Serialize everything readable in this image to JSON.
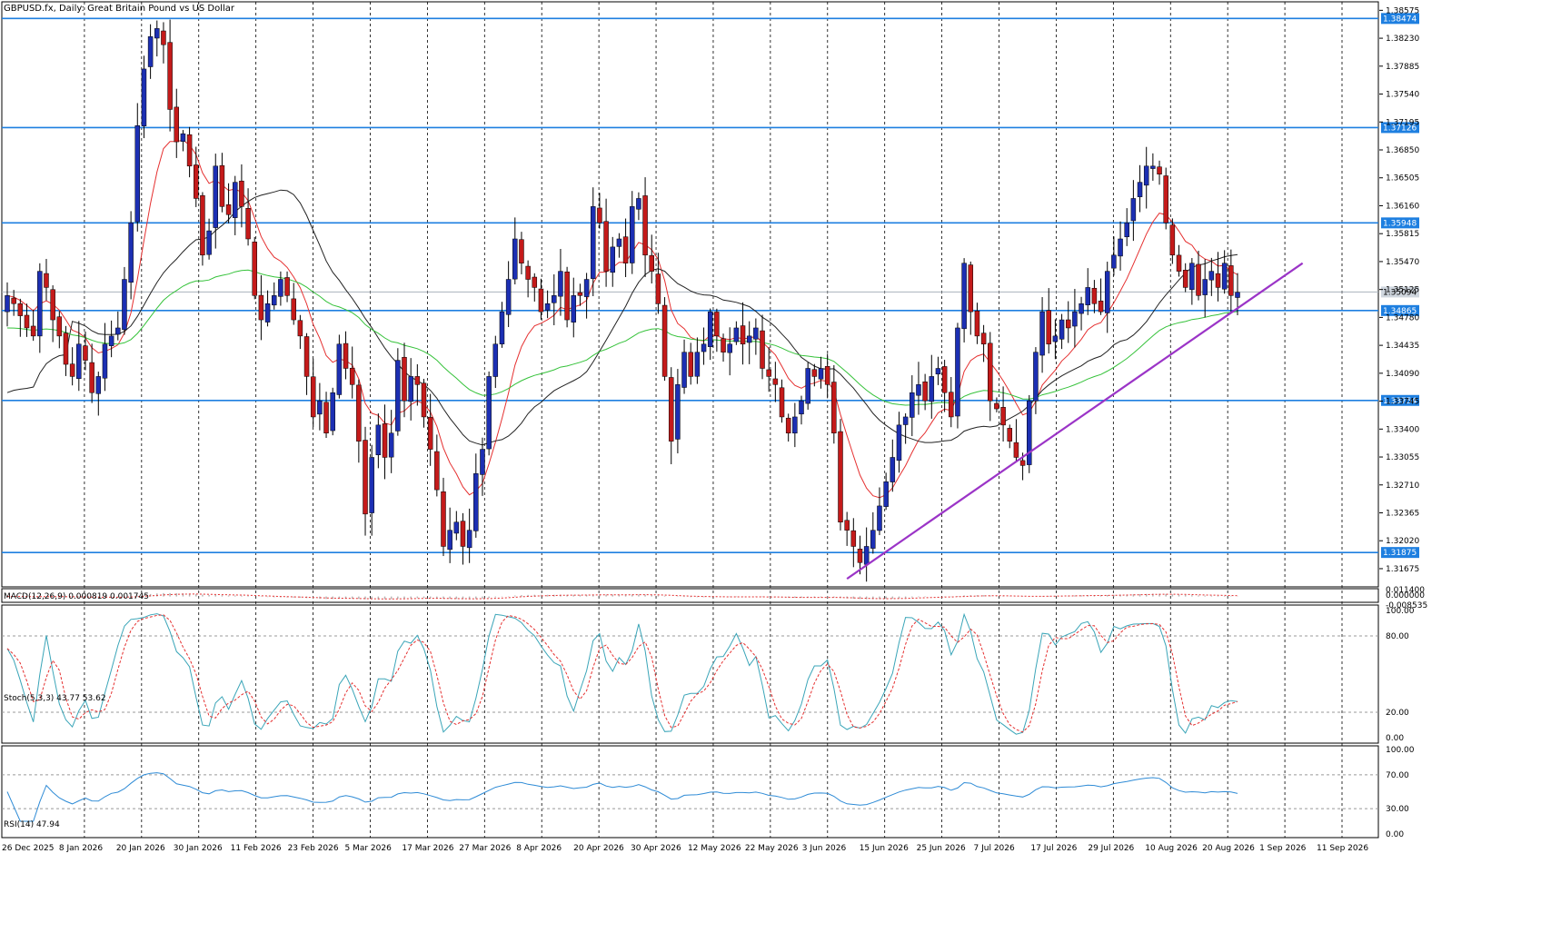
{
  "chart_title": "GBPUSD.fx, Daily:  Great Britain Pound vs US Dollar",
  "colors": {
    "bull": "#1c2fb3",
    "bear": "#c41a1a",
    "level": "#1e7fe0",
    "trend": "#9b34c7",
    "ma_fast": "#e53030",
    "ma_mid": "#222222",
    "ma_slow": "#35c23a",
    "macd_hist": "#b4b4b4",
    "macd_signal": "#e53030",
    "stoch_main": "#3aa5b8",
    "stoch_signal": "#e53030",
    "rsi": "#2e8bd6"
  },
  "price_axis": {
    "ticks": [
      "1.38575",
      "1.38230",
      "1.37885",
      "1.37540",
      "1.37195",
      "1.36850",
      "1.36505",
      "1.36160",
      "1.35815",
      "1.35470",
      "1.35125",
      "1.34780",
      "1.34435",
      "1.34090",
      "1.33745",
      "1.33400",
      "1.33055",
      "1.32710",
      "1.32365",
      "1.32020",
      "1.31675"
    ],
    "level_labels": [
      "1.38474",
      "1.37126",
      "1.35948",
      "1.34865",
      "1.33754",
      "1.31875"
    ],
    "current_price": "1.35094"
  },
  "date_labels": [
    "26 Dec 2025",
    "8 Jan 2026",
    "20 Jan 2026",
    "30 Jan 2026",
    "11 Feb 2026",
    "23 Feb 2026",
    "5 Mar 2026",
    "17 Mar 2026",
    "27 Mar 2026",
    "8 Apr 2026",
    "20 Apr 2026",
    "30 Apr 2026",
    "12 May 2026",
    "22 May 2026",
    "3 Jun 2026",
    "15 Jun 2026",
    "25 Jun 2026",
    "7 Jul 2026",
    "17 Jul 2026",
    "29 Jul 2026",
    "10 Aug 2026",
    "20 Aug 2026",
    "1 Sep 2026",
    "11 Sep 2026"
  ],
  "macd": {
    "label": "MACD(12,26,9) 0.000819 0.001745",
    "ticks": [
      "0.011400",
      "0.000000",
      "-0.008535"
    ]
  },
  "stoch": {
    "label": "Stoch(5,3,3) 43.77 53.62",
    "ticks": [
      "100.00",
      "80.00",
      "20.00",
      "0.00"
    ]
  },
  "rsi": {
    "label": "RSI(14) 47.94",
    "ticks": [
      "100.00",
      "70.00",
      "30.00",
      "0.00"
    ]
  },
  "chart_data": {
    "type": "candlestick",
    "symbol": "GBPUSD.fx",
    "timeframe": "Daily",
    "ylim": [
      1.3145,
      1.3868
    ],
    "horizontal_levels": [
      1.38474,
      1.37126,
      1.35948,
      1.34865,
      1.33754,
      1.31875
    ],
    "trendline": {
      "from": [
        "15 Jun 2026",
        1.3155
      ],
      "to": [
        "16 Sep 2026",
        1.3545
      ]
    },
    "closes": [
      1.3505,
      1.3495,
      1.348,
      1.3465,
      1.3455,
      1.3535,
      1.3515,
      1.3475,
      1.3455,
      1.342,
      1.3405,
      1.3445,
      1.3425,
      1.3385,
      1.3405,
      1.3445,
      1.3455,
      1.3465,
      1.3525,
      1.3595,
      1.3715,
      1.3785,
      1.3825,
      1.3835,
      1.3815,
      1.3735,
      1.3695,
      1.3705,
      1.3665,
      1.3625,
      1.3555,
      1.3585,
      1.3665,
      1.3615,
      1.3605,
      1.3645,
      1.3615,
      1.3575,
      1.3505,
      1.3475,
      1.3495,
      1.3505,
      1.3525,
      1.3505,
      1.3475,
      1.3455,
      1.3405,
      1.3355,
      1.3375,
      1.3335,
      1.3385,
      1.3445,
      1.3415,
      1.3395,
      1.3325,
      1.3235,
      1.3305,
      1.3345,
      1.3305,
      1.3335,
      1.3425,
      1.3375,
      1.3405,
      1.3395,
      1.3355,
      1.3315,
      1.3265,
      1.3195,
      1.3215,
      1.3225,
      1.3195,
      1.3215,
      1.3285,
      1.3315,
      1.3405,
      1.3445,
      1.3485,
      1.3525,
      1.3575,
      1.3545,
      1.3525,
      1.3515,
      1.3485,
      1.3495,
      1.3505,
      1.3535,
      1.3475,
      1.3505,
      1.3505,
      1.3525,
      1.3615,
      1.3595,
      1.3535,
      1.3565,
      1.3575,
      1.3545,
      1.3615,
      1.3625,
      1.3555,
      1.3535,
      1.3495,
      1.3405,
      1.3325,
      1.3395,
      1.3435,
      1.3405,
      1.3435,
      1.3445,
      1.3485,
      1.3455,
      1.3435,
      1.3445,
      1.3465,
      1.3445,
      1.3455,
      1.3465,
      1.3415,
      1.3405,
      1.3395,
      1.3355,
      1.3335,
      1.3355,
      1.3375,
      1.3415,
      1.3405,
      1.3415,
      1.3395,
      1.3335,
      1.3225,
      1.3215,
      1.3195,
      1.3175,
      1.3195,
      1.3215,
      1.3245,
      1.3275,
      1.3305,
      1.3345,
      1.3355,
      1.3385,
      1.3395,
      1.3375,
      1.3405,
      1.3415,
      1.3385,
      1.3355,
      1.3465,
      1.3545,
      1.3485,
      1.3455,
      1.3445,
      1.3375,
      1.3365,
      1.3345,
      1.3325,
      1.3305,
      1.3295,
      1.3375,
      1.3435,
      1.3485,
      1.3445,
      1.3455,
      1.3475,
      1.3465,
      1.3485,
      1.3495,
      1.3515,
      1.3495,
      1.3485,
      1.3535,
      1.3555,
      1.3575,
      1.3595,
      1.3625,
      1.3645,
      1.3665,
      1.3665,
      1.3655,
      1.3595,
      1.3555,
      1.3535,
      1.3515,
      1.3545,
      1.3505,
      1.3525,
      1.3535,
      1.3515,
      1.3545,
      1.3505,
      1.3509
    ]
  }
}
